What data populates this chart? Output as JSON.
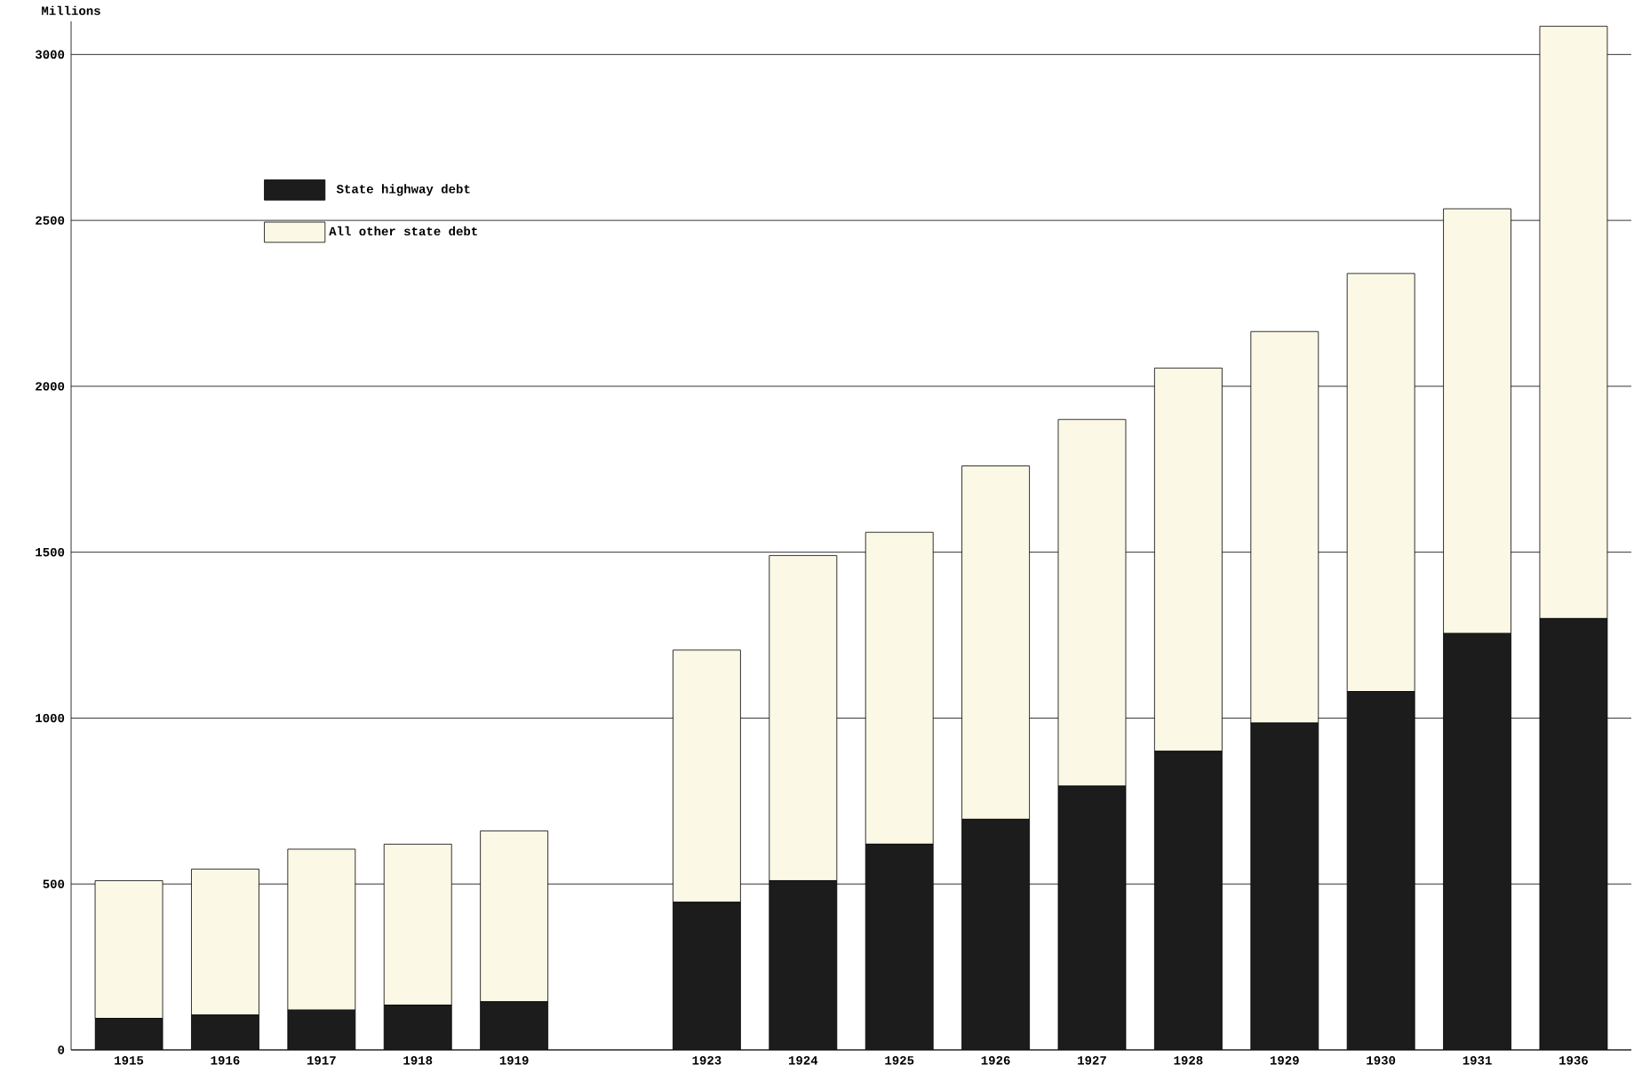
{
  "chart_data": {
    "type": "bar",
    "stacked": true,
    "ylabel": "Millions",
    "categories": [
      "1915",
      "1916",
      "1917",
      "1918",
      "1919",
      null,
      "1923",
      "1924",
      "1925",
      "1926",
      "1927",
      "1928",
      "1929",
      "1930",
      "1931",
      "1936"
    ],
    "series": [
      {
        "name": "State highway debt",
        "color": "#1c1c1c",
        "values": [
          95,
          105,
          120,
          135,
          145,
          null,
          445,
          510,
          620,
          695,
          795,
          900,
          985,
          1080,
          1255,
          1300
        ]
      },
      {
        "name": "All other state debt",
        "color": "#fbf8e6",
        "values": [
          415,
          440,
          485,
          485,
          515,
          null,
          760,
          980,
          940,
          1065,
          1105,
          1155,
          1180,
          1260,
          1280,
          1785
        ]
      }
    ],
    "ylim": [
      0,
      3100
    ],
    "yticks": [
      0,
      500,
      1000,
      1500,
      2000,
      2500,
      3000
    ],
    "grid": "y",
    "legend": "top left"
  }
}
